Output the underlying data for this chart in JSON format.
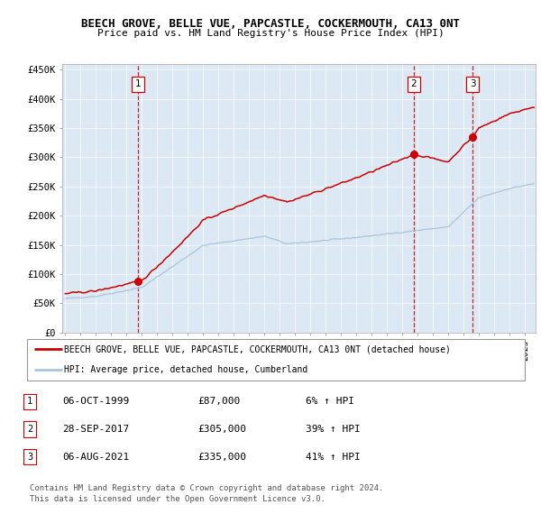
{
  "title": "BEECH GROVE, BELLE VUE, PAPCASTLE, COCKERMOUTH, CA13 0NT",
  "subtitle": "Price paid vs. HM Land Registry's House Price Index (HPI)",
  "ylabel_ticks": [
    "£0",
    "£50K",
    "£100K",
    "£150K",
    "£200K",
    "£250K",
    "£300K",
    "£350K",
    "£400K",
    "£450K"
  ],
  "ytick_values": [
    0,
    50000,
    100000,
    150000,
    200000,
    250000,
    300000,
    350000,
    400000,
    450000
  ],
  "ylim": [
    0,
    460000
  ],
  "xlim_start": 1994.8,
  "xlim_end": 2025.7,
  "outer_bg_color": "#ffffff",
  "plot_bg_color": "#dce9f5",
  "red_line_color": "#cc0000",
  "blue_line_color": "#aac4dd",
  "sale_marker_color": "#cc0000",
  "dashed_line_color": "#cc0000",
  "legend_label_red": "BEECH GROVE, BELLE VUE, PAPCASTLE, COCKERMOUTH, CA13 0NT (detached house)",
  "legend_label_blue": "HPI: Average price, detached house, Cumberland",
  "transactions": [
    {
      "num": 1,
      "date": "06-OCT-1999",
      "price": 87000,
      "pct": "6%",
      "direction": "↑",
      "marker_x": 1999.76,
      "marker_y": 87000
    },
    {
      "num": 2,
      "date": "28-SEP-2017",
      "price": 305000,
      "pct": "39%",
      "direction": "↑",
      "marker_x": 2017.74,
      "marker_y": 305000
    },
    {
      "num": 3,
      "date": "06-AUG-2021",
      "price": 335000,
      "pct": "41%",
      "direction": "↑",
      "marker_x": 2021.6,
      "marker_y": 335000
    }
  ],
  "footer_line1": "Contains HM Land Registry data © Crown copyright and database right 2024.",
  "footer_line2": "This data is licensed under the Open Government Licence v3.0."
}
